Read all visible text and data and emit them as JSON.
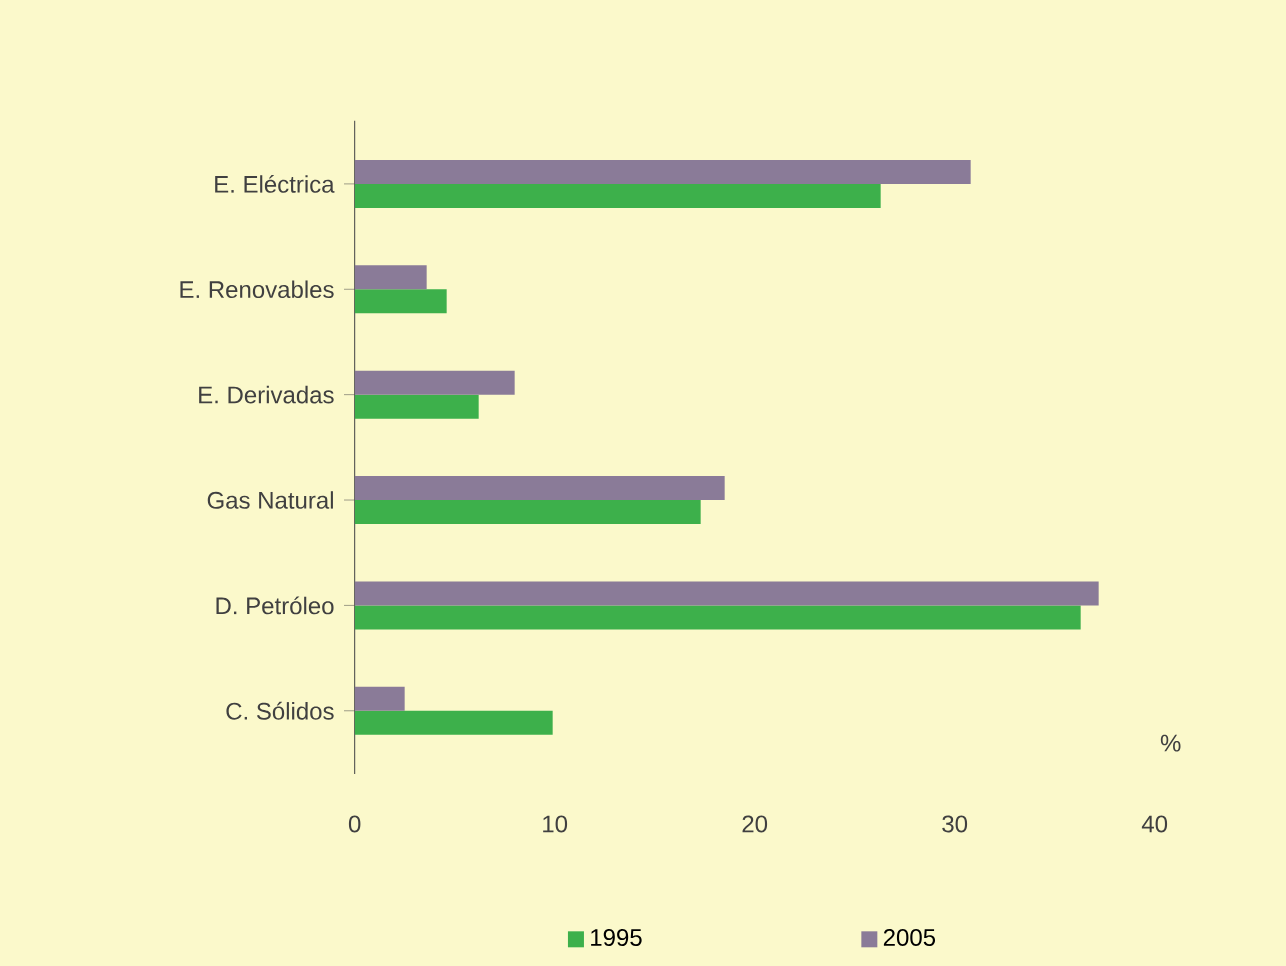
{
  "chart_data": {
    "type": "bar",
    "orientation": "horizontal",
    "xlabel": "%",
    "categories": [
      "E. Eléctrica",
      "E. Renovables",
      "E. Derivadas",
      "Gas Natural",
      "D. Petróleo",
      "C. Sólidos"
    ],
    "series": [
      {
        "name": "1995",
        "color": "#3db04b",
        "values": [
          26.3,
          4.6,
          6.2,
          17.3,
          36.3,
          9.9
        ]
      },
      {
        "name": "2005",
        "color": "#8a7b98",
        "values": [
          30.8,
          3.6,
          8.0,
          18.5,
          37.2,
          2.5
        ]
      }
    ],
    "xlim": [
      0,
      40
    ],
    "xticks": [
      0,
      10,
      20,
      30,
      40
    ],
    "legend": "bottom"
  }
}
